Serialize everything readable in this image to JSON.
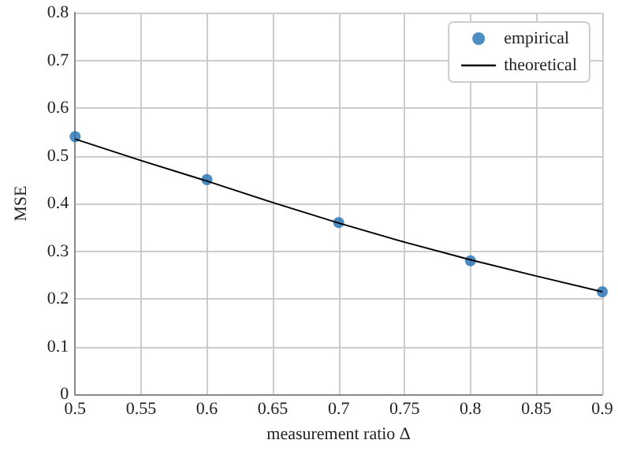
{
  "chart_data": {
    "type": "scatter",
    "xlabel": "measurement ratio Δ",
    "ylabel": "MSE",
    "xlim": [
      0.5,
      0.9
    ],
    "xticks": [
      0.5,
      0.55,
      0.6,
      0.65,
      0.7,
      0.75,
      0.8,
      0.85,
      0.9
    ],
    "ylim": [
      0,
      0.8
    ],
    "yticks": [
      0,
      0.1,
      0.2,
      0.3,
      0.4,
      0.5,
      0.6,
      0.7,
      0.8
    ],
    "grid": true,
    "legend": "top right",
    "series": [
      {
        "name": "empirical",
        "marker": "circle",
        "color": "#1f6fb0",
        "x": [
          0.5,
          0.6,
          0.7,
          0.8,
          0.9
        ],
        "values": [
          0.54,
          0.45,
          0.36,
          0.28,
          0.215
        ]
      },
      {
        "name": "theoretical",
        "type": "line",
        "marker": "none",
        "color": "#000000",
        "x": [
          0.5,
          0.55,
          0.6,
          0.65,
          0.7,
          0.75,
          0.8,
          0.85,
          0.9
        ],
        "values": [
          0.535,
          0.49,
          0.447,
          0.402,
          0.359,
          0.319,
          0.282,
          0.248,
          0.215
        ]
      }
    ]
  }
}
